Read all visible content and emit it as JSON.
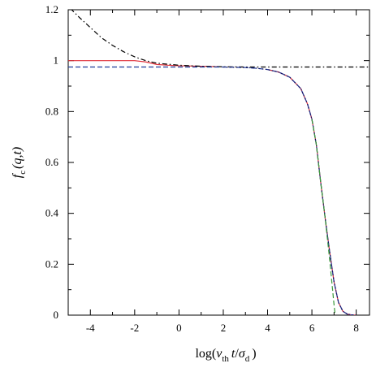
{
  "chart_data": {
    "type": "line",
    "title": "",
    "xlabel": {
      "prefix": "log(",
      "v": "v",
      "v_sub": "th",
      "t": "t",
      "slash": "/",
      "sigma": "σ",
      "sigma_sub": "d",
      "suffix": ")"
    },
    "ylabel": {
      "f": "f",
      "f_sub": "c",
      "args": "(q,t)"
    },
    "xlim": [
      -5,
      8.6
    ],
    "ylim": [
      0,
      1.2
    ],
    "xticks": [
      {
        "value": -4,
        "label": "-4"
      },
      {
        "value": -2,
        "label": "-2"
      },
      {
        "value": 0,
        "label": "0"
      },
      {
        "value": 2,
        "label": "2"
      },
      {
        "value": 4,
        "label": "4"
      },
      {
        "value": 6,
        "label": "6"
      },
      {
        "value": 8,
        "label": "8"
      }
    ],
    "yticks": [
      {
        "value": 0,
        "label": "0"
      },
      {
        "value": 0.2,
        "label": "0.2"
      },
      {
        "value": 0.4,
        "label": "0.4"
      },
      {
        "value": 0.6,
        "label": "0.6"
      },
      {
        "value": 0.8,
        "label": "0.8"
      },
      {
        "value": 1,
        "label": "1"
      },
      {
        "value": 1.2,
        "label": "1.2"
      }
    ],
    "grid": false,
    "legend": "none",
    "series": [
      {
        "style": "solid",
        "color": "#e0303a",
        "x": [
          -5,
          -4,
          -3,
          -2,
          -1.5,
          -1,
          -0.5,
          0,
          1,
          1.8
        ],
        "y": [
          1.0,
          1.0,
          1.0,
          1.0,
          0.995,
          0.985,
          0.982,
          0.98,
          0.978,
          0.976
        ]
      },
      {
        "style": "solid",
        "color": "#e0303a",
        "x": [
          4.0,
          4.5,
          5.0,
          5.5,
          5.8,
          6.0,
          6.2,
          6.4,
          6.6,
          6.8,
          7.0,
          7.2,
          7.4,
          7.6,
          7.8,
          8.0
        ],
        "y": [
          0.965,
          0.955,
          0.935,
          0.89,
          0.83,
          0.77,
          0.67,
          0.52,
          0.38,
          0.25,
          0.13,
          0.05,
          0.015,
          0.004,
          0.001,
          0
        ]
      },
      {
        "style": "dashdot",
        "color": "#000000",
        "x": [
          -4.9,
          -4.5,
          -4,
          -3.5,
          -3,
          -2.5,
          -2,
          -1.5,
          -1,
          0,
          1,
          2,
          3,
          4,
          5,
          6,
          7,
          8,
          8.6
        ],
        "y": [
          1.205,
          1.17,
          1.13,
          1.09,
          1.06,
          1.035,
          1.015,
          1.0,
          0.99,
          0.982,
          0.978,
          0.976,
          0.975,
          0.975,
          0.975,
          0.975,
          0.975,
          0.975,
          0.975
        ]
      },
      {
        "style": "dashed",
        "color": "#1f3c9a",
        "x": [
          -5,
          -2,
          0,
          2,
          3,
          3.5,
          4.0,
          4.5,
          5.0,
          5.5,
          5.8,
          6.0,
          6.2,
          6.4,
          6.6,
          6.8,
          7.0,
          7.2,
          7.4,
          7.6,
          7.8,
          7.9
        ],
        "y": [
          0.975,
          0.975,
          0.975,
          0.975,
          0.973,
          0.97,
          0.965,
          0.955,
          0.935,
          0.89,
          0.83,
          0.77,
          0.67,
          0.52,
          0.38,
          0.25,
          0.13,
          0.05,
          0.015,
          0.004,
          0.001,
          0
        ]
      },
      {
        "style": "dotted",
        "color": "#101060",
        "x": [
          2,
          3,
          3.5,
          4.0,
          4.5,
          5.0,
          5.5,
          5.8,
          6.0,
          6.2,
          6.4,
          6.6,
          6.8,
          7.0,
          7.2,
          7.4,
          7.6,
          7.8,
          8.0
        ],
        "y": [
          0.975,
          0.973,
          0.97,
          0.965,
          0.955,
          0.935,
          0.89,
          0.83,
          0.77,
          0.67,
          0.52,
          0.38,
          0.25,
          0.13,
          0.05,
          0.015,
          0.004,
          0.001,
          0
        ]
      },
      {
        "style": "dashed",
        "color": "#3a9a3a",
        "x": [
          6.0,
          6.2,
          6.4,
          6.6,
          6.8,
          6.9,
          7.0,
          7.05
        ],
        "y": [
          0.77,
          0.67,
          0.52,
          0.38,
          0.22,
          0.13,
          0.04,
          0
        ]
      }
    ]
  }
}
